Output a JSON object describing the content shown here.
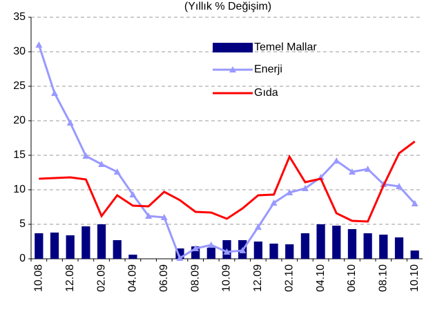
{
  "chart_data": {
    "type": "combo",
    "title": "(Yıllık % Değişim)",
    "categories": [
      "10.08",
      null,
      "12.08",
      null,
      "02.09",
      null,
      "04.09",
      null,
      "06.09",
      null,
      "08.09",
      null,
      "10.09",
      null,
      "12.09",
      null,
      "02.10",
      null,
      "04.10",
      null,
      "06.10",
      null,
      "08.10",
      null,
      "10.10"
    ],
    "series": [
      {
        "name": "Temel Mallar",
        "kind": "bar",
        "color": "#000080",
        "values": [
          3.7,
          3.8,
          3.4,
          4.7,
          5.0,
          2.7,
          0.6,
          0,
          0,
          1.5,
          1.8,
          1.6,
          2.7,
          2.7,
          2.5,
          2.2,
          2.1,
          3.7,
          5.0,
          4.8,
          4.3,
          3.7,
          3.5,
          3.1,
          1.2
        ]
      },
      {
        "name": "Enerji",
        "kind": "line",
        "marker": "triangle",
        "color": "#9999ff",
        "values": [
          31,
          24,
          19.7,
          14.9,
          13.7,
          12.6,
          9.3,
          6.2,
          6.0,
          0.1,
          1.5,
          2.0,
          1.0,
          1.2,
          4.6,
          8.1,
          9.6,
          10.2,
          11.8,
          14.2,
          12.6,
          13.0,
          10.8,
          10.5,
          8.0
        ]
      },
      {
        "name": "Gıda",
        "kind": "line",
        "color": "#ff0000",
        "values": [
          11.6,
          11.7,
          11.8,
          11.5,
          6.2,
          9.2,
          7.7,
          7.6,
          9.7,
          8.5,
          6.8,
          6.7,
          5.8,
          7.3,
          9.2,
          9.3,
          14.8,
          11.1,
          11.6,
          6.6,
          5.5,
          5.4,
          10.6,
          15.3,
          17.0
        ]
      }
    ],
    "ylim": [
      0,
      35
    ],
    "yticks": [
      0,
      5,
      10,
      15,
      20,
      25,
      30,
      35
    ],
    "grid": true
  }
}
